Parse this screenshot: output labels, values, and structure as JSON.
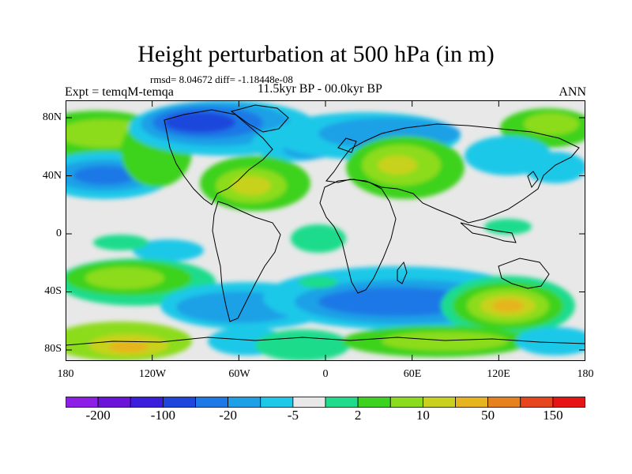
{
  "title": "Height perturbation at 500 hPa (in m)",
  "stats_text": "rmsd= 8.04672 diff= -1.18448e-08",
  "period": "11.5kyr BP - 00.0kyr BP",
  "expt": "Expt = temqM-temqa",
  "season": "ANN",
  "lat_labels": [
    "80N",
    "40N",
    "0",
    "40S",
    "80S"
  ],
  "lon_labels": [
    "180",
    "120W",
    "60W",
    "0",
    "60E",
    "120E",
    "180"
  ],
  "legend": {
    "colors": [
      "#8c1ee6",
      "#6a14d8",
      "#3a1edc",
      "#1e46dc",
      "#1e78e6",
      "#1ea0e6",
      "#1ec8e8",
      "#e8e8e8",
      "#1edc8c",
      "#3cd21e",
      "#8cdc1e",
      "#c8d21e",
      "#e6b41e",
      "#e6821e",
      "#e6461e",
      "#e61414"
    ],
    "labels": [
      "-200",
      "-100",
      "-20",
      "-5",
      "2",
      "10",
      "50",
      "150"
    ]
  }
}
